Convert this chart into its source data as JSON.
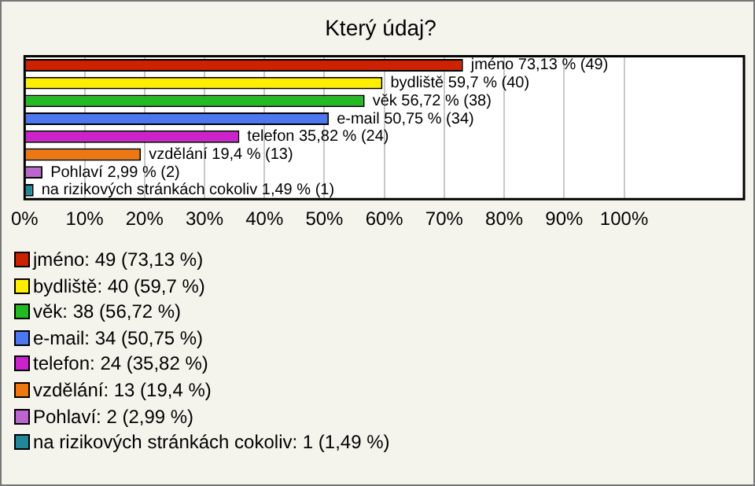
{
  "chart_data": {
    "type": "bar",
    "title": "Který údaj?",
    "orientation": "horizontal",
    "stacked": true,
    "categories": [
      null,
      null,
      null,
      null,
      null,
      null,
      null,
      null
    ],
    "series": [
      {
        "name": "jméno: 49 (73,13 %)",
        "color": "#cc2200",
        "values": [
          73.13,
          null,
          null,
          null,
          null,
          null,
          null,
          null
        ],
        "value_labels": [
          "jméno 73,13 % (49)",
          null,
          null,
          null,
          null,
          null,
          null,
          null
        ]
      },
      {
        "name": "bydliště: 40 (59,7 %)",
        "color": "#ffee00",
        "values": [
          null,
          59.7,
          null,
          null,
          null,
          null,
          null,
          null
        ],
        "value_labels": [
          null,
          "bydliště 59,7 % (40)",
          null,
          null,
          null,
          null,
          null,
          null
        ]
      },
      {
        "name": "věk: 38 (56,72 %)",
        "color": "#22bb22",
        "values": [
          null,
          null,
          56.72,
          null,
          null,
          null,
          null,
          null
        ],
        "value_labels": [
          null,
          null,
          "věk 56,72 % (38)",
          null,
          null,
          null,
          null,
          null
        ]
      },
      {
        "name": "e-mail: 34 (50,75 %)",
        "color": "#4d77ee",
        "values": [
          null,
          null,
          null,
          50.75,
          null,
          null,
          null,
          null
        ],
        "value_labels": [
          null,
          null,
          null,
          "e-mail 50,75 % (34)",
          null,
          null,
          null,
          null
        ]
      },
      {
        "name": "telefon: 24 (35,82 %)",
        "color": "#cc22cc",
        "values": [
          null,
          null,
          null,
          null,
          35.82,
          null,
          null,
          null
        ],
        "value_labels": [
          null,
          null,
          null,
          null,
          "telefon 35,82 % (24)",
          null,
          null,
          null
        ]
      },
      {
        "name": "vzdělání: 13 (19,4 %)",
        "color": "#ee7711",
        "values": [
          null,
          null,
          null,
          null,
          null,
          19.4,
          null,
          null
        ],
        "value_labels": [
          null,
          null,
          null,
          null,
          null,
          "vzdělání 19,4 % (13)",
          null,
          null
        ]
      },
      {
        "name": "Pohlaví: 2 (2,99 %)",
        "color": "#bb66cc",
        "values": [
          null,
          null,
          null,
          null,
          null,
          null,
          2.99,
          null
        ],
        "value_labels": [
          null,
          null,
          null,
          null,
          null,
          null,
          "Pohlaví 2,99 % (2)",
          null
        ]
      },
      {
        "name": "na rizikových stránkách cokoliv: 1 (1,49 %)",
        "color": "#228899",
        "values": [
          null,
          null,
          null,
          null,
          null,
          null,
          null,
          1.49
        ],
        "value_labels": [
          null,
          null,
          null,
          null,
          null,
          null,
          null,
          "na rizikových stránkách cokoliv 1,49 % (1)"
        ]
      }
    ],
    "xlim": [
      0,
      120
    ],
    "xticks": [
      {
        "value": 0,
        "label": "0%"
      },
      {
        "value": 10,
        "label": "10%"
      },
      {
        "value": 20,
        "label": "20%"
      },
      {
        "value": 30,
        "label": "30%"
      },
      {
        "value": 40,
        "label": "40%"
      },
      {
        "value": 50,
        "label": "50%"
      },
      {
        "value": 60,
        "label": "60%"
      },
      {
        "value": 70,
        "label": "70%"
      },
      {
        "value": 80,
        "label": "80%"
      },
      {
        "value": 90,
        "label": "90%"
      },
      {
        "value": 100,
        "label": "100%"
      }
    ],
    "grid": "x",
    "legend": "bottom"
  }
}
